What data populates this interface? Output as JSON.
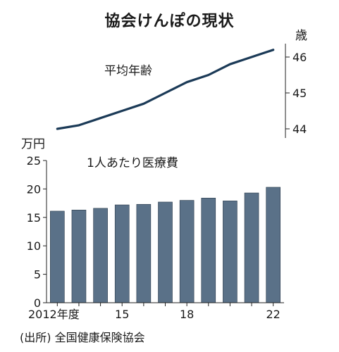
{
  "title": "協会けんぽの現状",
  "source": "(出所) 全国健康保険協会",
  "chart_data": [
    {
      "type": "line",
      "series_label": "平均年齢",
      "unit": "歳",
      "ylim": [
        43.85,
        46.35
      ],
      "yticks": [
        44,
        45,
        46
      ],
      "x": [
        2012,
        2013,
        2014,
        2015,
        2016,
        2017,
        2018,
        2019,
        2020,
        2021,
        2022
      ],
      "values": [
        44.0,
        44.1,
        44.3,
        44.5,
        44.7,
        45.0,
        45.3,
        45.5,
        45.8,
        46.0,
        46.2
      ],
      "color": "#1b3a57"
    },
    {
      "type": "bar",
      "series_label": "1人あたり医療費",
      "unit": "万円",
      "ylim": [
        0,
        25
      ],
      "yticks": [
        0,
        5,
        10,
        15,
        20,
        25
      ],
      "x": [
        2012,
        2013,
        2014,
        2015,
        2016,
        2017,
        2018,
        2019,
        2020,
        2021,
        2022
      ],
      "xtick_labels": [
        "2012年度",
        "15",
        "18",
        "22"
      ],
      "values": [
        16.1,
        16.3,
        16.6,
        17.2,
        17.3,
        17.7,
        18.0,
        18.4,
        17.9,
        19.3,
        20.3
      ],
      "color": "#5a7188"
    }
  ]
}
